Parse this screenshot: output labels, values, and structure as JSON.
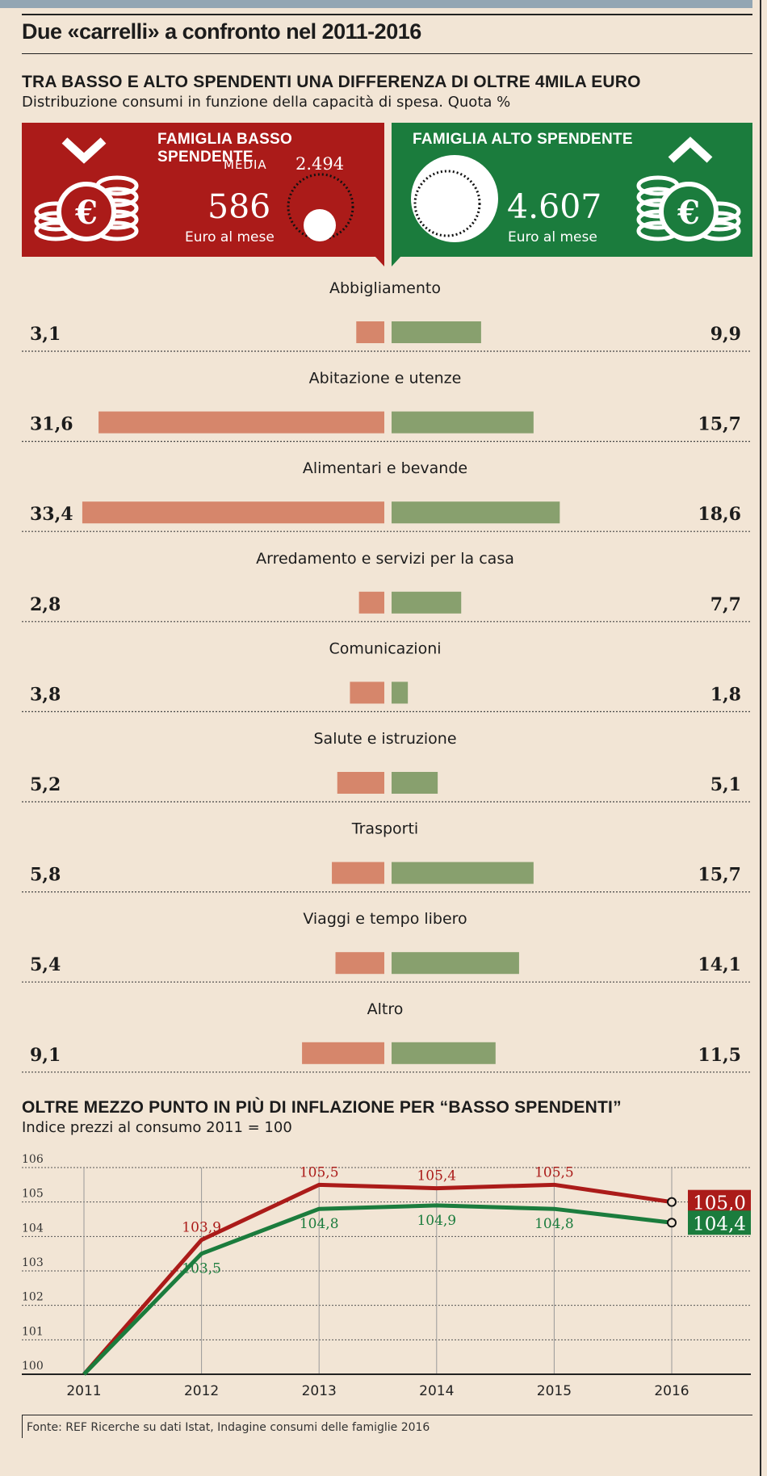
{
  "title": "Due «carrelli» a confronto nel 2011-2016",
  "section1": {
    "heading": "TRA BASSO E ALTO SPENDENTI UNA DIFFERENZA DI OLTRE 4MILA EURO",
    "subheading": "Distribuzione consumi in funzione della capacità di spesa. Quota %"
  },
  "panels": {
    "low": {
      "title": "FAMIGLIA BASSO SPENDENTE",
      "value": "586",
      "unit": "Euro al mese",
      "media_label": "MEDIA",
      "media_value": "2.494"
    },
    "high": {
      "title": "FAMIGLIA ALTO SPENDENTE",
      "value": "4.607",
      "unit": "Euro al mese"
    }
  },
  "section2": {
    "heading": "OLTRE MEZZO PUNTO IN PIÙ DI INFLAZIONE PER “BASSO SPENDENTI”",
    "subheading": "Indice prezzi al consumo 2011 = 100"
  },
  "source": "Fonte: REF Ricerche su dati Istat, Indagine consumi delle famiglie 2016",
  "colors": {
    "low_panel": "#ab1b19",
    "high_panel": "#1b7c3d",
    "low_bar": "#d6866b",
    "high_bar": "#88a06e",
    "low_line": "#ab1b19",
    "high_line": "#1b7c3d"
  },
  "chart_data": [
    {
      "type": "bar",
      "orientation": "horizontal-diverging",
      "categories": [
        "Abbigliamento",
        "Abitazione e utenze",
        "Alimentari e bevande",
        "Arredamento e servizi per la casa",
        "Comunicazioni",
        "Salute e istruzione",
        "Trasporti",
        "Viaggi e tempo libero",
        "Altro"
      ],
      "series": [
        {
          "name": "Famiglia basso spendente",
          "values": [
            3.1,
            31.6,
            33.4,
            2.8,
            3.8,
            5.2,
            5.8,
            5.4,
            9.1
          ],
          "labels": [
            "3,1",
            "31,6",
            "33,4",
            "2,8",
            "3,8",
            "5,2",
            "5,8",
            "5,4",
            "9,1"
          ]
        },
        {
          "name": "Famiglia alto spendente",
          "values": [
            9.9,
            15.7,
            18.6,
            7.7,
            1.8,
            5.1,
            15.7,
            14.1,
            11.5
          ],
          "labels": [
            "9,9",
            "15,7",
            "18,6",
            "7,7",
            "1,8",
            "5,1",
            "15,7",
            "14,1",
            "11,5"
          ]
        }
      ],
      "unit": "Quota %"
    },
    {
      "type": "line",
      "title": "Indice prezzi al consumo 2011 = 100",
      "x": [
        "2011",
        "2012",
        "2013",
        "2014",
        "2015",
        "2016"
      ],
      "ylim": [
        100,
        106
      ],
      "yticks": [
        "100",
        "101",
        "102",
        "103",
        "104",
        "105",
        "106"
      ],
      "series": [
        {
          "name": "Basso spendenti",
          "values": [
            100,
            103.9,
            105.5,
            105.4,
            105.5,
            105.0
          ],
          "labels": [
            "",
            "103,9",
            "105,5",
            "105,4",
            "105,5",
            "105,0"
          ]
        },
        {
          "name": "Alto spendenti",
          "values": [
            100,
            103.5,
            104.8,
            104.9,
            104.8,
            104.4
          ],
          "labels": [
            "",
            "103,5",
            "104,8",
            "104,9",
            "104,8",
            "104,4"
          ]
        }
      ]
    }
  ]
}
